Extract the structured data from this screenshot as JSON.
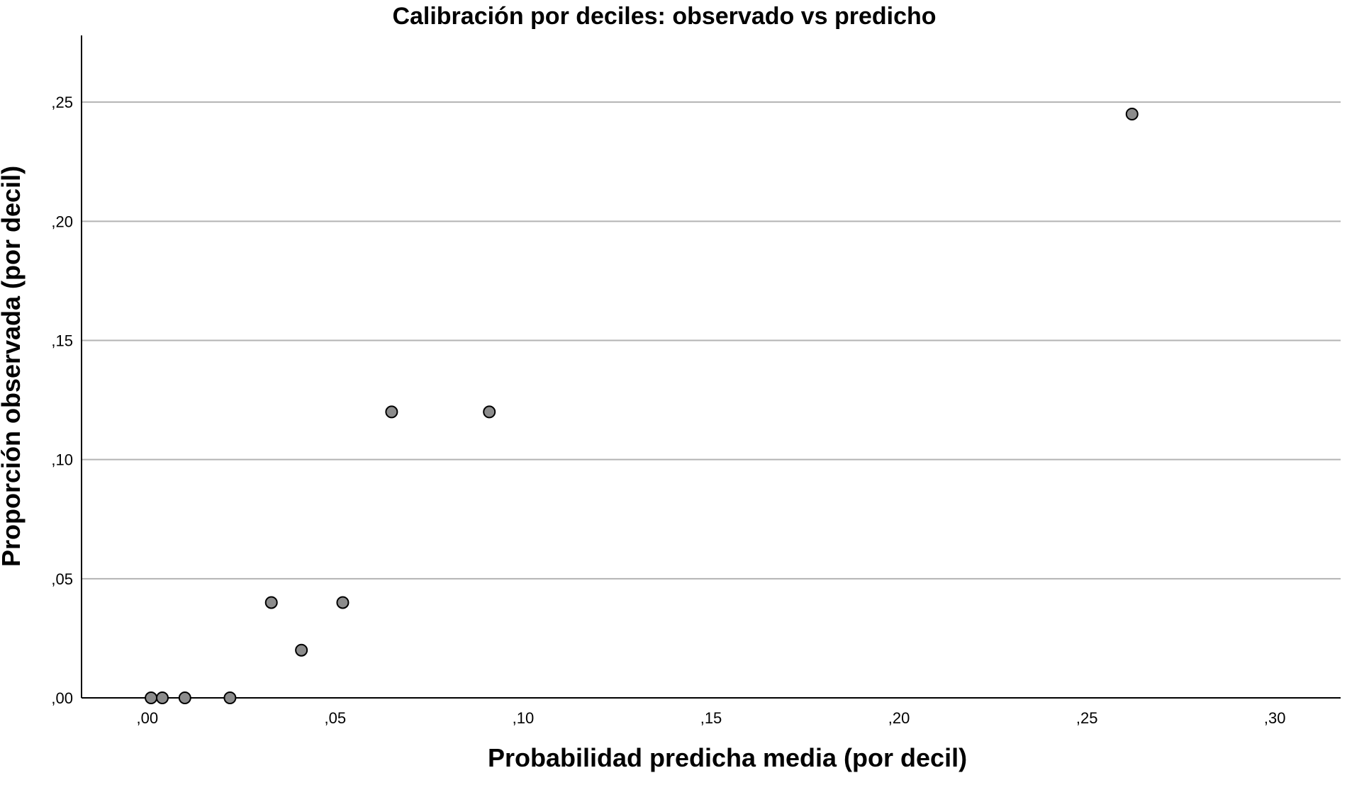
{
  "chart_data": {
    "type": "scatter",
    "title": "Calibración por deciles: observado vs predicho",
    "xlabel": "Probabilidad predicha media (por decil)",
    "ylabel": "Proporción observada (por decil)",
    "xlim": [
      -0.0175,
      0.3175
    ],
    "ylim": [
      0.0,
      0.278
    ],
    "x_ticks": [
      0.0,
      0.05,
      0.1,
      0.15,
      0.2,
      0.25,
      0.3
    ],
    "x_tick_labels": [
      ",00",
      ",05",
      ",10",
      ",15",
      ",20",
      ",25",
      ",30"
    ],
    "y_ticks": [
      0.0,
      0.05,
      0.1,
      0.15,
      0.2,
      0.25
    ],
    "y_tick_labels": [
      ",00",
      ",05",
      ",10",
      ",15",
      ",20",
      ",25"
    ],
    "grid": "horizontal",
    "point_color": "#8c8c8c",
    "series": [
      {
        "points": [
          {
            "x": 0.001,
            "y": 0.0
          },
          {
            "x": 0.004,
            "y": 0.0
          },
          {
            "x": 0.01,
            "y": 0.0
          },
          {
            "x": 0.022,
            "y": 0.0
          },
          {
            "x": 0.033,
            "y": 0.04
          },
          {
            "x": 0.041,
            "y": 0.02
          },
          {
            "x": 0.052,
            "y": 0.04
          },
          {
            "x": 0.065,
            "y": 0.12
          },
          {
            "x": 0.091,
            "y": 0.12
          },
          {
            "x": 0.262,
            "y": 0.245
          }
        ]
      }
    ]
  }
}
